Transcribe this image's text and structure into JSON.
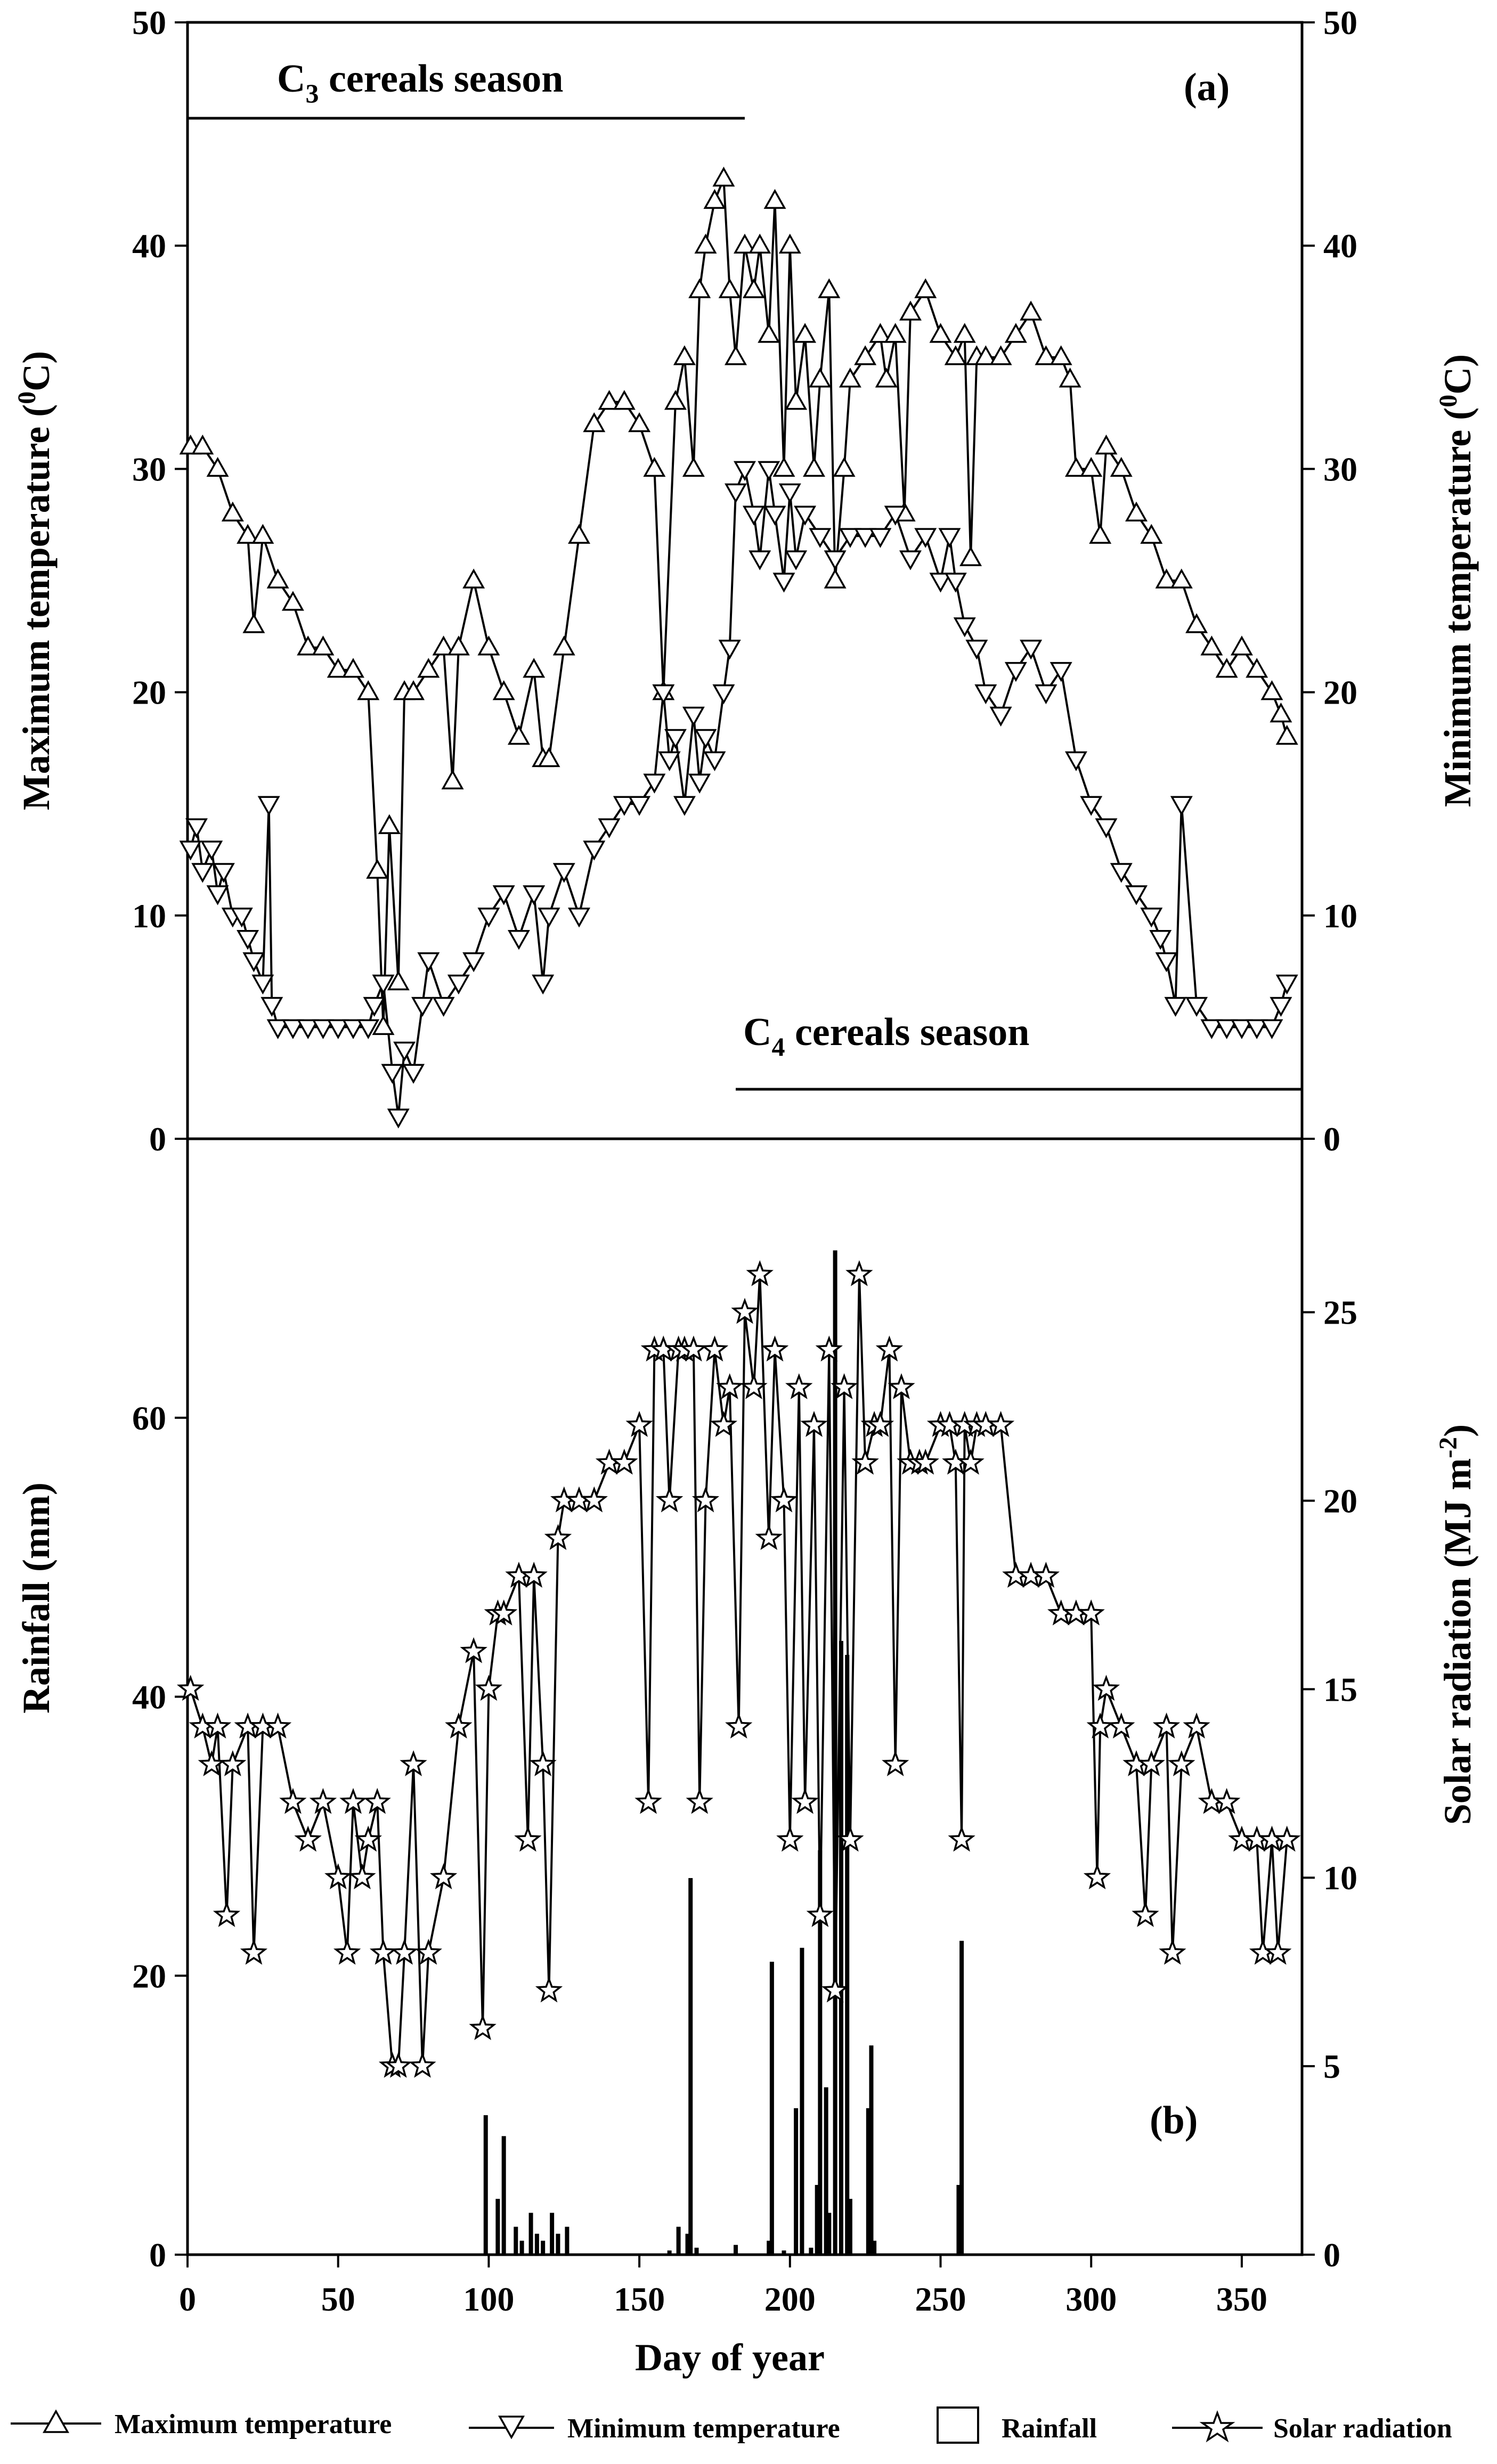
{
  "chart_data": [
    {
      "panel": "(a)",
      "type": "line",
      "annotations": [
        "C3 cereals season",
        "C4 cereals season"
      ],
      "xlabel": "",
      "ylabel_left": "Maximum temperature (oC)",
      "ylabel_right": "Minimum temperature (oC)",
      "xlim": [
        0,
        370
      ],
      "ylim": [
        0,
        50
      ],
      "y_ticks": [
        0,
        10,
        20,
        30,
        40,
        50
      ],
      "season_lines": {
        "c3": [
          0,
          185
        ],
        "c4": [
          182,
          370
        ]
      },
      "series": [
        {
          "name": "Maximum temperature",
          "marker": "triangle-up",
          "x": [
            1,
            5,
            10,
            15,
            20,
            22,
            25,
            30,
            35,
            40,
            45,
            50,
            55,
            60,
            63,
            65,
            67,
            70,
            72,
            75,
            80,
            85,
            88,
            90,
            95,
            100,
            105,
            110,
            115,
            118,
            120,
            125,
            130,
            135,
            140,
            145,
            150,
            155,
            158,
            162,
            165,
            168,
            170,
            172,
            175,
            178,
            180,
            182,
            185,
            188,
            190,
            193,
            195,
            198,
            200,
            202,
            205,
            208,
            210,
            213,
            215,
            218,
            220,
            225,
            230,
            232,
            235,
            238,
            240,
            245,
            250,
            255,
            258,
            260,
            262,
            265,
            270,
            275,
            280,
            285,
            290,
            293,
            295,
            300,
            303,
            305,
            310,
            315,
            320,
            325,
            330,
            335,
            340,
            345,
            350,
            355,
            360,
            363,
            365
          ],
          "y": [
            31,
            31,
            30,
            28,
            27,
            23,
            27,
            25,
            24,
            22,
            22,
            21,
            21,
            20,
            12,
            5,
            14,
            7,
            20,
            20,
            21,
            22,
            16,
            22,
            25,
            22,
            20,
            18,
            21,
            17,
            17,
            22,
            27,
            32,
            33,
            33,
            32,
            30,
            20,
            33,
            35,
            30,
            38,
            40,
            42,
            43,
            38,
            35,
            40,
            38,
            40,
            36,
            42,
            30,
            40,
            33,
            36,
            30,
            34,
            38,
            25,
            30,
            34,
            35,
            36,
            34,
            36,
            28,
            37,
            38,
            36,
            35,
            36,
            26,
            35,
            35,
            35,
            36,
            37,
            35,
            35,
            34,
            30,
            30,
            27,
            31,
            30,
            28,
            27,
            25,
            25,
            23,
            22,
            21,
            22,
            21,
            20,
            19,
            18
          ]
        },
        {
          "name": "Minimum temperature",
          "marker": "triangle-down",
          "x": [
            1,
            3,
            5,
            8,
            10,
            12,
            15,
            18,
            20,
            22,
            25,
            27,
            28,
            30,
            35,
            40,
            45,
            50,
            55,
            60,
            62,
            65,
            68,
            70,
            72,
            75,
            78,
            80,
            85,
            90,
            95,
            100,
            105,
            110,
            115,
            118,
            120,
            125,
            130,
            135,
            140,
            145,
            150,
            155,
            158,
            160,
            162,
            165,
            168,
            170,
            172,
            175,
            178,
            180,
            182,
            185,
            188,
            190,
            193,
            195,
            198,
            200,
            202,
            205,
            210,
            215,
            220,
            225,
            230,
            235,
            240,
            245,
            250,
            253,
            255,
            258,
            262,
            265,
            270,
            275,
            280,
            285,
            290,
            295,
            300,
            305,
            310,
            315,
            320,
            323,
            325,
            328,
            330,
            335,
            340,
            345,
            350,
            355,
            360,
            363,
            365
          ],
          "y": [
            13,
            14,
            12,
            13,
            11,
            12,
            10,
            10,
            9,
            8,
            7,
            15,
            6,
            5,
            5,
            5,
            5,
            5,
            5,
            5,
            6,
            7,
            3,
            1,
            4,
            3,
            6,
            8,
            6,
            7,
            8,
            10,
            11,
            9,
            11,
            7,
            10,
            12,
            10,
            13,
            14,
            15,
            15,
            16,
            20,
            17,
            18,
            15,
            19,
            16,
            18,
            17,
            20,
            22,
            29,
            30,
            28,
            26,
            30,
            28,
            25,
            29,
            26,
            28,
            27,
            26,
            27,
            27,
            27,
            28,
            26,
            27,
            25,
            27,
            25,
            23,
            22,
            20,
            19,
            21,
            22,
            20,
            21,
            17,
            15,
            14,
            12,
            11,
            10,
            9,
            8,
            6,
            15,
            6,
            5,
            5,
            5,
            5,
            5,
            6,
            7
          ]
        }
      ]
    },
    {
      "panel": "(b)",
      "type": "bar+line",
      "xlabel": "Day of year",
      "ylabel_left": "Rainfall (mm)",
      "ylabel_right": "Solar radiation (MJ m-2)",
      "xlim": [
        0,
        370
      ],
      "ylim_left": [
        0,
        80
      ],
      "ylim_right": [
        0,
        29.6
      ],
      "x_ticks": [
        0,
        50,
        100,
        150,
        200,
        250,
        300,
        350
      ],
      "y_ticks_left": [
        0,
        20,
        40,
        60
      ],
      "y_ticks_right": [
        0,
        5,
        10,
        15,
        20,
        25
      ],
      "series": [
        {
          "name": "Rainfall",
          "type": "bar",
          "x": [
            99,
            103,
            105,
            109,
            111,
            114,
            116,
            118,
            121,
            123,
            126,
            160,
            163,
            166,
            167,
            169,
            182,
            193,
            194,
            198,
            202,
            204,
            207,
            209,
            210,
            212,
            213,
            215,
            217,
            219,
            220,
            226,
            227,
            228,
            256,
            257
          ],
          "y": [
            10,
            4,
            8.5,
            2,
            1,
            3,
            1.5,
            1,
            3,
            1.5,
            2,
            0.3,
            2,
            1.5,
            27,
            0.5,
            0.7,
            1,
            21,
            0.3,
            10.5,
            22,
            0.5,
            5,
            29,
            12,
            3,
            72,
            44,
            43,
            4,
            10.5,
            15,
            1,
            5,
            22.5
          ]
        },
        {
          "name": "Solar radiation",
          "type": "line",
          "marker": "star",
          "x": [
            1,
            5,
            8,
            10,
            13,
            15,
            20,
            22,
            25,
            30,
            35,
            40,
            45,
            50,
            53,
            55,
            58,
            60,
            63,
            65,
            68,
            70,
            72,
            75,
            78,
            80,
            85,
            90,
            95,
            98,
            100,
            103,
            105,
            110,
            113,
            115,
            118,
            120,
            123,
            125,
            130,
            135,
            140,
            145,
            150,
            153,
            155,
            158,
            160,
            163,
            165,
            168,
            170,
            172,
            175,
            178,
            180,
            183,
            185,
            188,
            190,
            193,
            195,
            198,
            200,
            203,
            205,
            208,
            210,
            213,
            215,
            218,
            220,
            223,
            225,
            228,
            230,
            233,
            235,
            237,
            240,
            243,
            245,
            250,
            253,
            255,
            257,
            258,
            260,
            262,
            265,
            270,
            275,
            280,
            285,
            290,
            295,
            300,
            302,
            303,
            305,
            310,
            315,
            318,
            320,
            325,
            327,
            330,
            335,
            340,
            345,
            350,
            355,
            357,
            360,
            362,
            365
          ],
          "y": [
            15,
            14,
            13,
            14,
            9,
            13,
            14,
            8,
            14,
            14,
            12,
            11,
            12,
            10,
            8,
            12,
            10,
            11,
            12,
            8,
            5,
            5,
            8,
            13,
            5,
            8,
            10,
            14,
            16,
            6,
            15,
            17,
            17,
            18,
            11,
            18,
            13,
            7,
            19,
            20,
            20,
            20,
            21,
            21,
            22,
            12,
            24,
            24,
            20,
            24,
            24,
            24,
            12,
            20,
            24,
            22,
            23,
            14,
            25,
            23,
            26,
            19,
            24,
            20,
            11,
            23,
            12,
            22,
            9,
            24,
            7,
            23,
            11,
            26,
            21,
            22,
            22,
            24,
            13,
            23,
            21,
            21,
            21,
            22,
            22,
            21,
            11,
            22,
            21,
            22,
            22,
            22,
            18,
            18,
            18,
            17,
            17,
            17,
            10,
            14,
            15,
            14,
            13,
            9,
            13,
            14,
            8,
            13,
            14,
            12,
            12,
            11,
            11,
            8,
            11,
            8,
            11
          ]
        }
      ]
    }
  ],
  "labels": {
    "panel_a": "(a)",
    "panel_b": "(b)",
    "c3_main": "C",
    "c3_sub": "3",
    "c3_rest": " cereals season",
    "c4_main": "C",
    "c4_sub": "4",
    "c4_rest": " cereals season",
    "ylabel_a_left": "Maximum temperature (",
    "ylabel_a_right": "Minimum temperature (",
    "degree_sup": "0",
    "degree_rest": "C)",
    "ylabel_b_left": "Rainfall (mm)",
    "ylabel_b_right": "Solar radiation (MJ m",
    "ylabel_b_right_sup": "-2",
    "ylabel_b_right_close": ")",
    "xlabel": "Day of year"
  },
  "legend": [
    "Maximum temperature",
    "Minimum temperature",
    "Rainfall",
    "Solar radiation"
  ]
}
